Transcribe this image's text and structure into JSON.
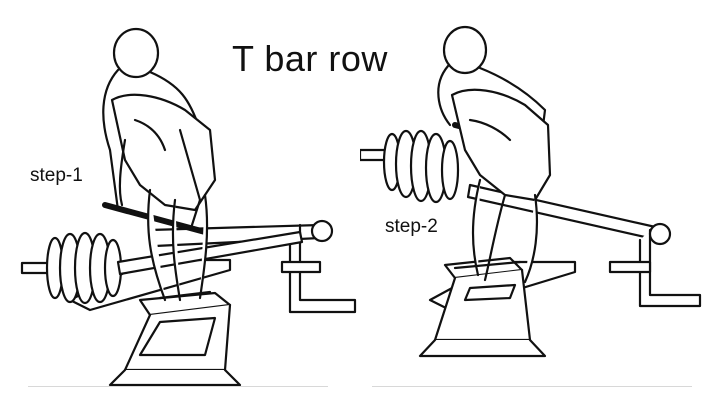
{
  "title": "T bar row",
  "steps": [
    {
      "label": "step-1"
    },
    {
      "label": "step-2"
    }
  ]
}
